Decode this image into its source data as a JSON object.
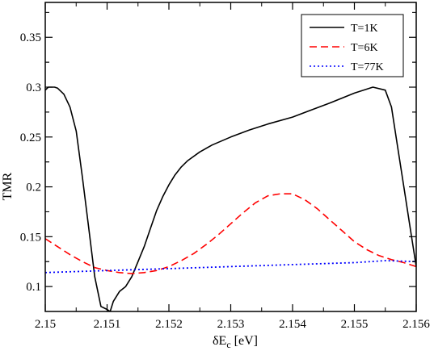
{
  "chart_data": {
    "type": "line",
    "xlabel": "δE",
    "xlabel_sub": "c",
    "xlabel_unit": "[eV]",
    "ylabel": "TMR",
    "xlim": [
      2.15,
      2.156
    ],
    "ylim": [
      0.075,
      0.385
    ],
    "x_ticks": [
      2.15,
      2.151,
      2.152,
      2.153,
      2.154,
      2.155,
      2.156
    ],
    "x_tick_labels": [
      "2.15",
      "2.151",
      "2.152",
      "2.153",
      "2.154",
      "2.155",
      "2.156"
    ],
    "y_ticks": [
      0.1,
      0.15,
      0.2,
      0.25,
      0.3,
      0.35
    ],
    "y_tick_labels": [
      "0.1",
      "0.15",
      "0.2",
      "0.25",
      "0.3",
      "0.35"
    ],
    "grid": false,
    "legend_position": "top-right",
    "series": [
      {
        "name": "T=1K",
        "color": "#000000",
        "dash": "solid",
        "x": [
          2.15,
          2.15005,
          2.1501,
          2.15015,
          2.1502,
          2.1503,
          2.1504,
          2.1505,
          2.1506,
          2.1507,
          2.1508,
          2.1509,
          2.151,
          2.15105,
          2.1511,
          2.1512,
          2.1513,
          2.1514,
          2.1515,
          2.1516,
          2.1517,
          2.1518,
          2.1519,
          2.152,
          2.1521,
          2.1522,
          2.1523,
          2.1525,
          2.1527,
          2.153,
          2.1533,
          2.1536,
          2.154,
          2.1543,
          2.1546,
          2.155,
          2.1553,
          2.1555,
          2.1556,
          2.1557,
          2.1558,
          2.1559,
          2.156
        ],
        "y": [
          0.297,
          0.3,
          0.3,
          0.3,
          0.299,
          0.293,
          0.28,
          0.256,
          0.21,
          0.16,
          0.11,
          0.08,
          0.077,
          0.075,
          0.085,
          0.095,
          0.1,
          0.11,
          0.125,
          0.14,
          0.158,
          0.176,
          0.19,
          0.202,
          0.212,
          0.22,
          0.226,
          0.235,
          0.242,
          0.25,
          0.257,
          0.263,
          0.27,
          0.277,
          0.284,
          0.294,
          0.3,
          0.297,
          0.28,
          0.24,
          0.2,
          0.16,
          0.12
        ]
      },
      {
        "name": "T=6K",
        "color": "#ff0000",
        "dash": "dashed",
        "x": [
          2.15,
          2.1502,
          2.1504,
          2.1506,
          2.1508,
          2.151,
          2.1512,
          2.1514,
          2.1516,
          2.1518,
          2.152,
          2.1522,
          2.1524,
          2.1526,
          2.1528,
          2.153,
          2.1532,
          2.1534,
          2.1536,
          2.1538,
          2.154,
          2.1542,
          2.1544,
          2.1546,
          2.1548,
          2.155,
          2.1552,
          2.1554,
          2.1556,
          2.1558,
          2.156
        ],
        "y": [
          0.148,
          0.14,
          0.132,
          0.125,
          0.119,
          0.116,
          0.114,
          0.113,
          0.114,
          0.116,
          0.12,
          0.126,
          0.133,
          0.142,
          0.152,
          0.163,
          0.174,
          0.184,
          0.191,
          0.193,
          0.193,
          0.187,
          0.178,
          0.167,
          0.156,
          0.145,
          0.137,
          0.131,
          0.127,
          0.124,
          0.12
        ]
      },
      {
        "name": "T=77K",
        "color": "#0000ff",
        "dash": "dotted",
        "x": [
          2.15,
          2.151,
          2.152,
          2.153,
          2.154,
          2.155,
          2.1555,
          2.156
        ],
        "y": [
          0.114,
          0.116,
          0.118,
          0.12,
          0.122,
          0.124,
          0.126,
          0.125
        ]
      }
    ]
  }
}
